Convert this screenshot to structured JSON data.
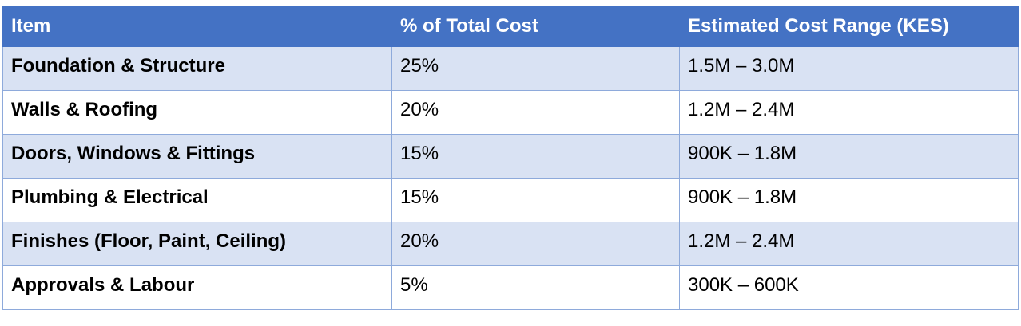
{
  "table": {
    "header": [
      "Item",
      "% of Total Cost",
      "Estimated Cost Range (KES)"
    ],
    "rows": [
      [
        "Foundation & Structure",
        "25%",
        "1.5M – 3.0M"
      ],
      [
        "Walls & Roofing",
        "20%",
        "1.2M – 2.4M"
      ],
      [
        "Doors, Windows & Fittings",
        "15%",
        "900K – 1.8M"
      ],
      [
        "Plumbing & Electrical",
        "15%",
        "900K – 1.8M"
      ],
      [
        "Finishes (Floor, Paint, Ceiling)",
        "20%",
        "1.2M – 2.4M"
      ],
      [
        "Approvals & Labour",
        "5%",
        "300K – 600K"
      ]
    ]
  }
}
